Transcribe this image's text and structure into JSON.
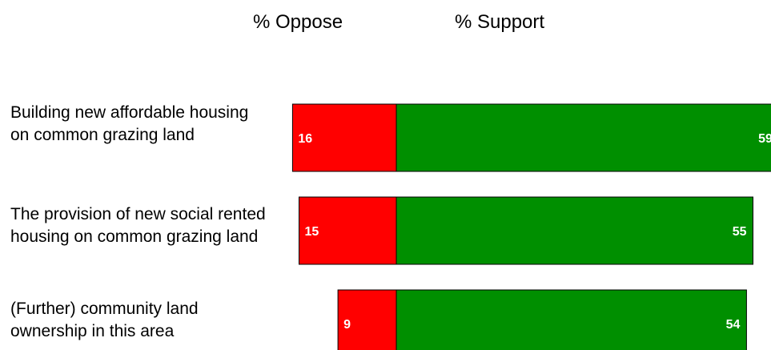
{
  "chart_data": {
    "type": "bar",
    "orientation": "horizontal-diverging",
    "title": "",
    "legend": [
      {
        "name": "% Oppose",
        "color": "#ff0000"
      },
      {
        "name": "% Support",
        "color": "#008f00"
      }
    ],
    "categories": [
      "Building new affordable housing on common grazing land",
      "The provision of new social rented housing on common grazing land",
      "(Further) community land ownership in this area"
    ],
    "series": [
      {
        "name": "% Oppose",
        "values": [
          16,
          15,
          9
        ]
      },
      {
        "name": "% Support",
        "values": [
          59,
          55,
          54
        ]
      }
    ]
  }
}
